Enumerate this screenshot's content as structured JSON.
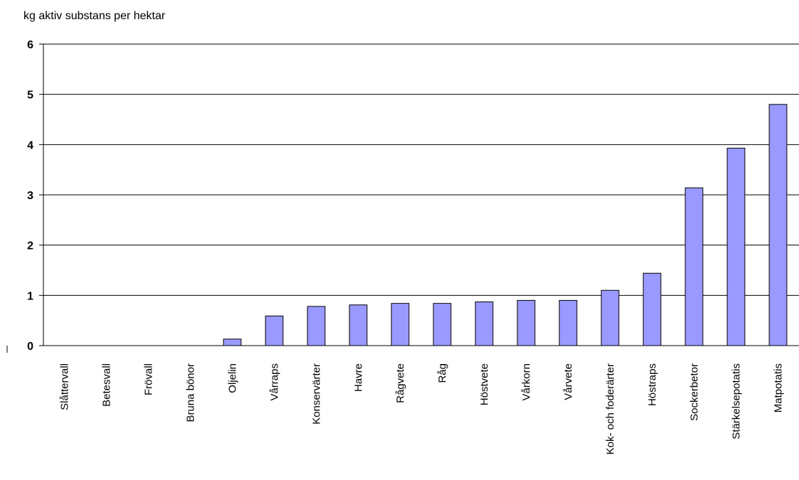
{
  "chart_data": {
    "type": "bar",
    "title": "",
    "ylabel": "kg aktiv substans per hektar",
    "xlabel": "",
    "ylim": [
      0,
      6
    ],
    "yticks": [
      0,
      1,
      2,
      3,
      4,
      5,
      6
    ],
    "grid": true,
    "legend": "none",
    "bar_color": "#9999ff",
    "categories": [
      "Slåttervall",
      "Betesvall",
      "Frövall",
      "Bruna bönor",
      "Oljelin",
      "Vårraps",
      "Konservärter",
      "Havre",
      "Rågvete",
      "Råg",
      "Höstvete",
      "Vårkorn",
      "Vårvete",
      "Kok- och foderärter",
      "Höstraps",
      "Sockerbetor",
      "Stärkelsepotatis",
      "Matpotatis"
    ],
    "values": [
      0,
      0,
      0,
      0,
      0.13,
      0.59,
      0.78,
      0.81,
      0.84,
      0.84,
      0.87,
      0.9,
      0.9,
      1.1,
      1.44,
      3.14,
      3.93,
      4.8
    ]
  }
}
